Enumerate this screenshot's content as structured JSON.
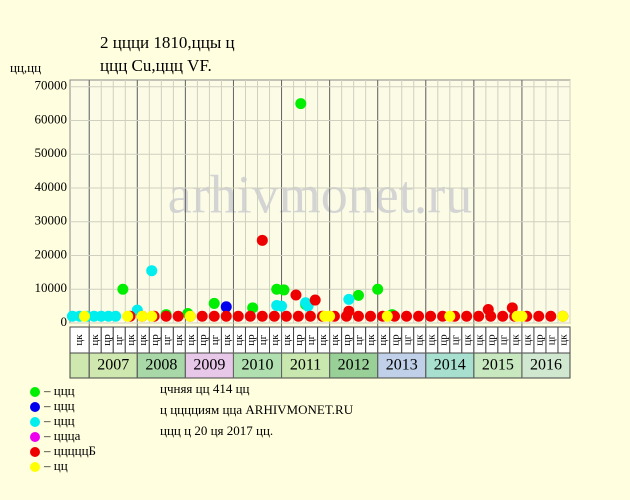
{
  "chart_data": {
    "type": "scatter",
    "title": "2 ццци 1810,ццы ц",
    "subtitle": "ццц Cu,ццц VF.",
    "y_label": "цц,цц",
    "watermark": "arhivmonet.ru",
    "xlim": [
      2006.6,
      2017
    ],
    "ylim": [
      0,
      72000
    ],
    "yticks": [
      0,
      10000,
      20000,
      30000,
      40000,
      50000,
      60000,
      70000
    ],
    "xticks": [
      2007,
      2008,
      2009,
      2010,
      2011,
      2012,
      2013,
      2014,
      2015,
      2016
    ],
    "year_colors": [
      "#cfe8b0",
      "#a8d8a8",
      "#e8c8e8",
      "#b0e0b0",
      "#c8e8b0",
      "#98d098",
      "#c0d0e8",
      "#a8e0d0",
      "#c8e8c0",
      "#d0e8d0"
    ],
    "lead_color": "#cfe8b0",
    "quarter_labels": [
      "цк",
      "цк",
      "цр",
      "цг",
      "цк",
      "цк",
      "цр",
      "цг",
      "цк",
      "цк",
      "цр",
      "цг",
      "цк",
      "цк",
      "цр",
      "цг",
      "цк",
      "цк",
      "цр",
      "цг",
      "цк",
      "цк",
      "цр",
      "цг",
      "цк",
      "цк",
      "цр",
      "цг",
      "цк",
      "цк",
      "цр",
      "цг",
      "цк",
      "цк",
      "цр",
      "цг",
      "цк",
      "цк",
      "цр",
      "цг",
      "цк"
    ],
    "grid": true,
    "series": [
      {
        "name": "– ццц",
        "color": "#00ee00",
        "x": [
          2007.7,
          2008.6,
          2009.05,
          2009.6,
          2010.4,
          2010.9,
          2011.05,
          2011.4,
          2011.5,
          2012.6,
          2013.0,
          2013.3
        ],
        "values": [
          10000,
          2500,
          2800,
          5800,
          4500,
          10000,
          9800,
          65000,
          5500,
          8200,
          10000,
          2500
        ]
      },
      {
        "name": "– ццц",
        "color": "#0000ee",
        "x": [
          2009.85
        ],
        "values": [
          4800
        ]
      },
      {
        "name": "– ццц",
        "color": "#00eeee",
        "x": [
          2006.65,
          2006.8,
          2006.95,
          2007.1,
          2007.25,
          2007.4,
          2007.55,
          2008.0,
          2008.3,
          2010.9,
          2011.0,
          2011.5,
          2011.55,
          2012.4
        ],
        "values": [
          2000,
          2000,
          2000,
          2000,
          2000,
          2000,
          2000,
          3800,
          15500,
          5200,
          5000,
          6000,
          5000,
          7000
        ]
      },
      {
        "name": "– ццца",
        "color": "#ee00ee",
        "x": [],
        "values": []
      },
      {
        "name": "– цццццБ",
        "color": "#ee0000",
        "x": [
          2007.85,
          2008.1,
          2008.35,
          2008.6,
          2008.85,
          2009.1,
          2009.35,
          2009.6,
          2009.85,
          2010.1,
          2010.35,
          2010.6,
          2010.85,
          2011.1,
          2011.35,
          2011.6,
          2011.85,
          2012.1,
          2012.35,
          2012.6,
          2012.85,
          2013.1,
          2013.35,
          2013.6,
          2013.85,
          2014.1,
          2014.35,
          2014.6,
          2014.85,
          2015.1,
          2015.35,
          2015.6,
          2015.85,
          2016.1,
          2016.35,
          2016.6,
          2016.85,
          2010.6,
          2011.3,
          2011.7,
          2012.4,
          2015.3,
          2015.8
        ],
        "values": [
          2000,
          2000,
          2000,
          2000,
          2000,
          2000,
          2000,
          2000,
          2000,
          2000,
          2000,
          2000,
          2000,
          2000,
          2000,
          2000,
          2000,
          2000,
          2000,
          2000,
          2000,
          2000,
          2000,
          2000,
          2000,
          2000,
          2000,
          2000,
          2000,
          2000,
          2000,
          2000,
          2000,
          2000,
          2000,
          2000,
          2000,
          24500,
          8300,
          6800,
          3500,
          4000,
          4500
        ]
      },
      {
        "name": "– цц",
        "color": "#ffff00",
        "x": [
          2006.9,
          2007.8,
          2008.1,
          2008.3,
          2009.1,
          2011.9,
          2012.0,
          2013.2,
          2014.5,
          2015.9,
          2016.0,
          2016.85
        ],
        "values": [
          2000,
          2000,
          2000,
          2000,
          2000,
          2000,
          2000,
          2000,
          2000,
          2000,
          2000,
          2000
        ]
      }
    ],
    "notes": [
      "цчняя цц 414 цц",
      "ц цццциям цца ARHIVMONET.RU",
      "ццц ц 20 ця 2017 цц."
    ]
  }
}
